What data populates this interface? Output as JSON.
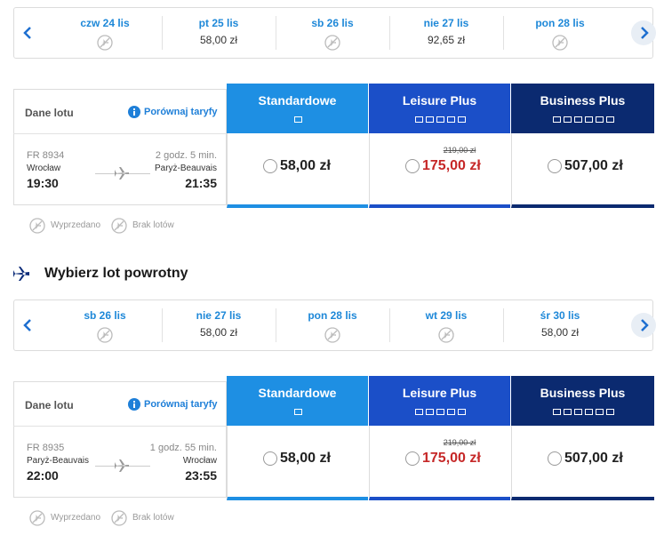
{
  "outbound": {
    "dates": [
      {
        "label": "czw 24 lis"
      },
      {
        "label": "pt 25 lis",
        "price": "58,00 zł"
      },
      {
        "label": "sb 26 lis"
      },
      {
        "label": "nie 27 lis",
        "price": "92,65 zł"
      },
      {
        "label": "pon 28 lis"
      }
    ],
    "details_title": "Dane lotu",
    "compare": "Porównaj taryfy",
    "flight": {
      "number": "FR 8934",
      "duration": "2 godz. 5 min.",
      "from": "Wrocław",
      "to": "Paryż-Beauvais",
      "departure": "19:30",
      "arrival": "21:35"
    },
    "fares": [
      {
        "name": "Standardowe",
        "price": "58,00 zł"
      },
      {
        "name": "Leisure Plus",
        "old_price": "219,00 zł",
        "price": "175,00 zł"
      },
      {
        "name": "Business Plus",
        "price": "507,00 zł"
      }
    ],
    "legend": [
      "Wyprzedano",
      "Brak lotów"
    ]
  },
  "return_heading": "Wybierz lot powrotny",
  "inbound": {
    "dates": [
      {
        "label": "sb 26 lis"
      },
      {
        "label": "nie 27 lis",
        "price": "58,00 zł"
      },
      {
        "label": "pon 28 lis"
      },
      {
        "label": "wt 29 lis"
      },
      {
        "label": "śr 30 lis",
        "price": "58,00 zł"
      }
    ],
    "details_title": "Dane lotu",
    "compare": "Porównaj taryfy",
    "flight": {
      "number": "FR 8935",
      "duration": "1 godz. 55 min.",
      "from": "Paryż-Beauvais",
      "to": "Wrocław",
      "departure": "22:00",
      "arrival": "23:55"
    },
    "fares": [
      {
        "name": "Standardowe",
        "price": "58,00 zł"
      },
      {
        "name": "Leisure Plus",
        "old_price": "219,00 zł",
        "price": "175,00 zł"
      },
      {
        "name": "Business Plus",
        "price": "507,00 zł"
      }
    ],
    "legend": [
      "Wyprzedano",
      "Brak lotów"
    ]
  }
}
